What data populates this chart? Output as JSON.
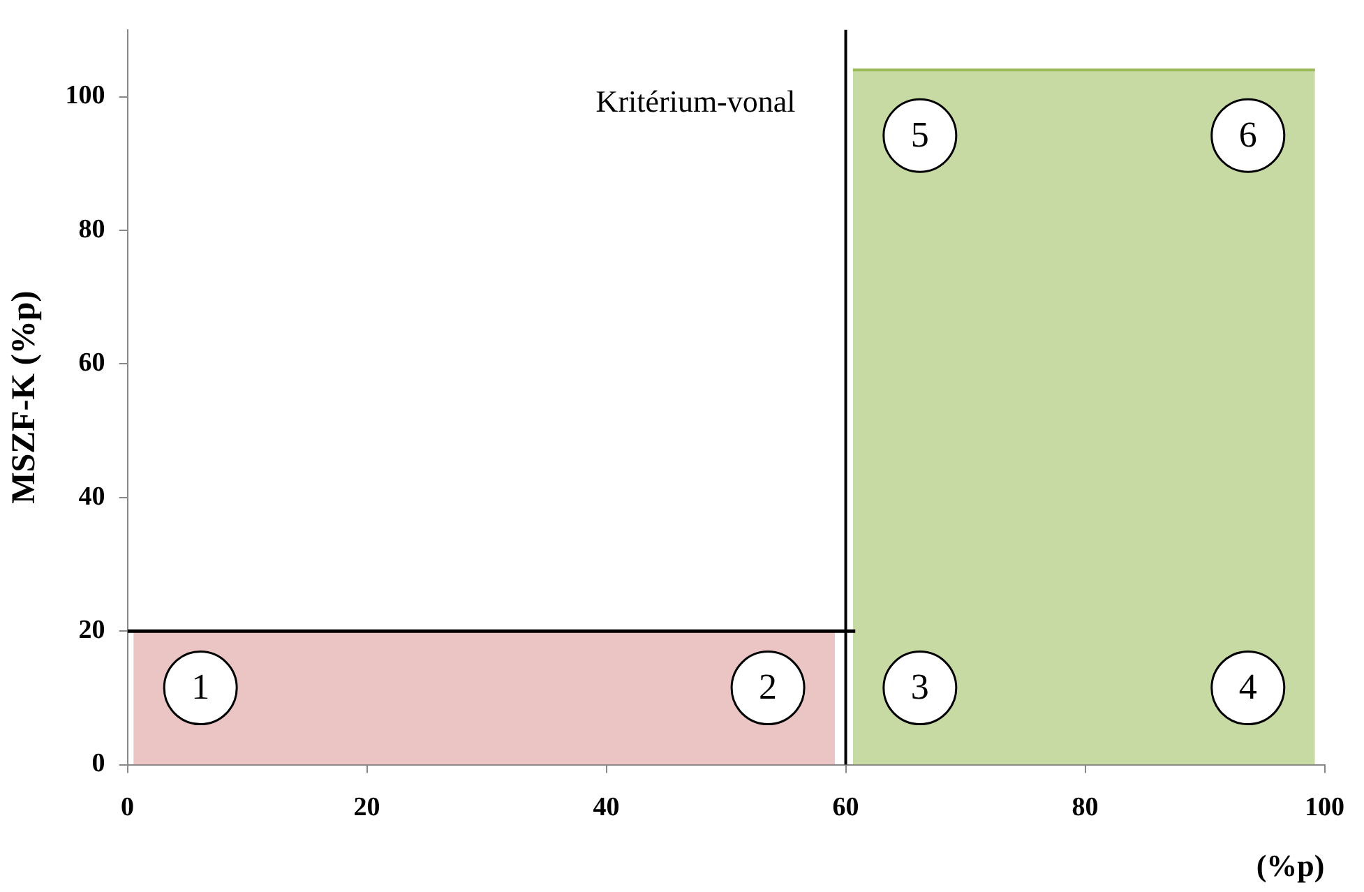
{
  "chart_data": {
    "type": "area",
    "xlabel": "(%p)",
    "ylabel": "MSZF-K (%p)",
    "xlim": [
      0,
      100
    ],
    "xticks": [
      0,
      20,
      40,
      60,
      80,
      100
    ],
    "ylim": [
      0,
      110
    ],
    "yticks": [
      0,
      20,
      40,
      60,
      80,
      100
    ],
    "grid": false,
    "legend": false,
    "series": [
      {
        "color": "#d99594",
        "x": [
          0.5,
          59.1
        ],
        "values": [
          20,
          20
        ]
      },
      {
        "color": "#9bbb59",
        "x": [
          60.6,
          99.2
        ],
        "values": [
          104,
          104
        ]
      },
      {
        "type": "line",
        "color": "#000000",
        "x": [
          0,
          60.8
        ],
        "values": [
          20,
          20
        ]
      }
    ],
    "ref_lines": [
      {
        "axis": "x",
        "value": 60,
        "label": "Kritérium-vonal"
      }
    ],
    "annotations": [
      "1",
      "2",
      "3",
      "4",
      "5",
      "6"
    ]
  }
}
